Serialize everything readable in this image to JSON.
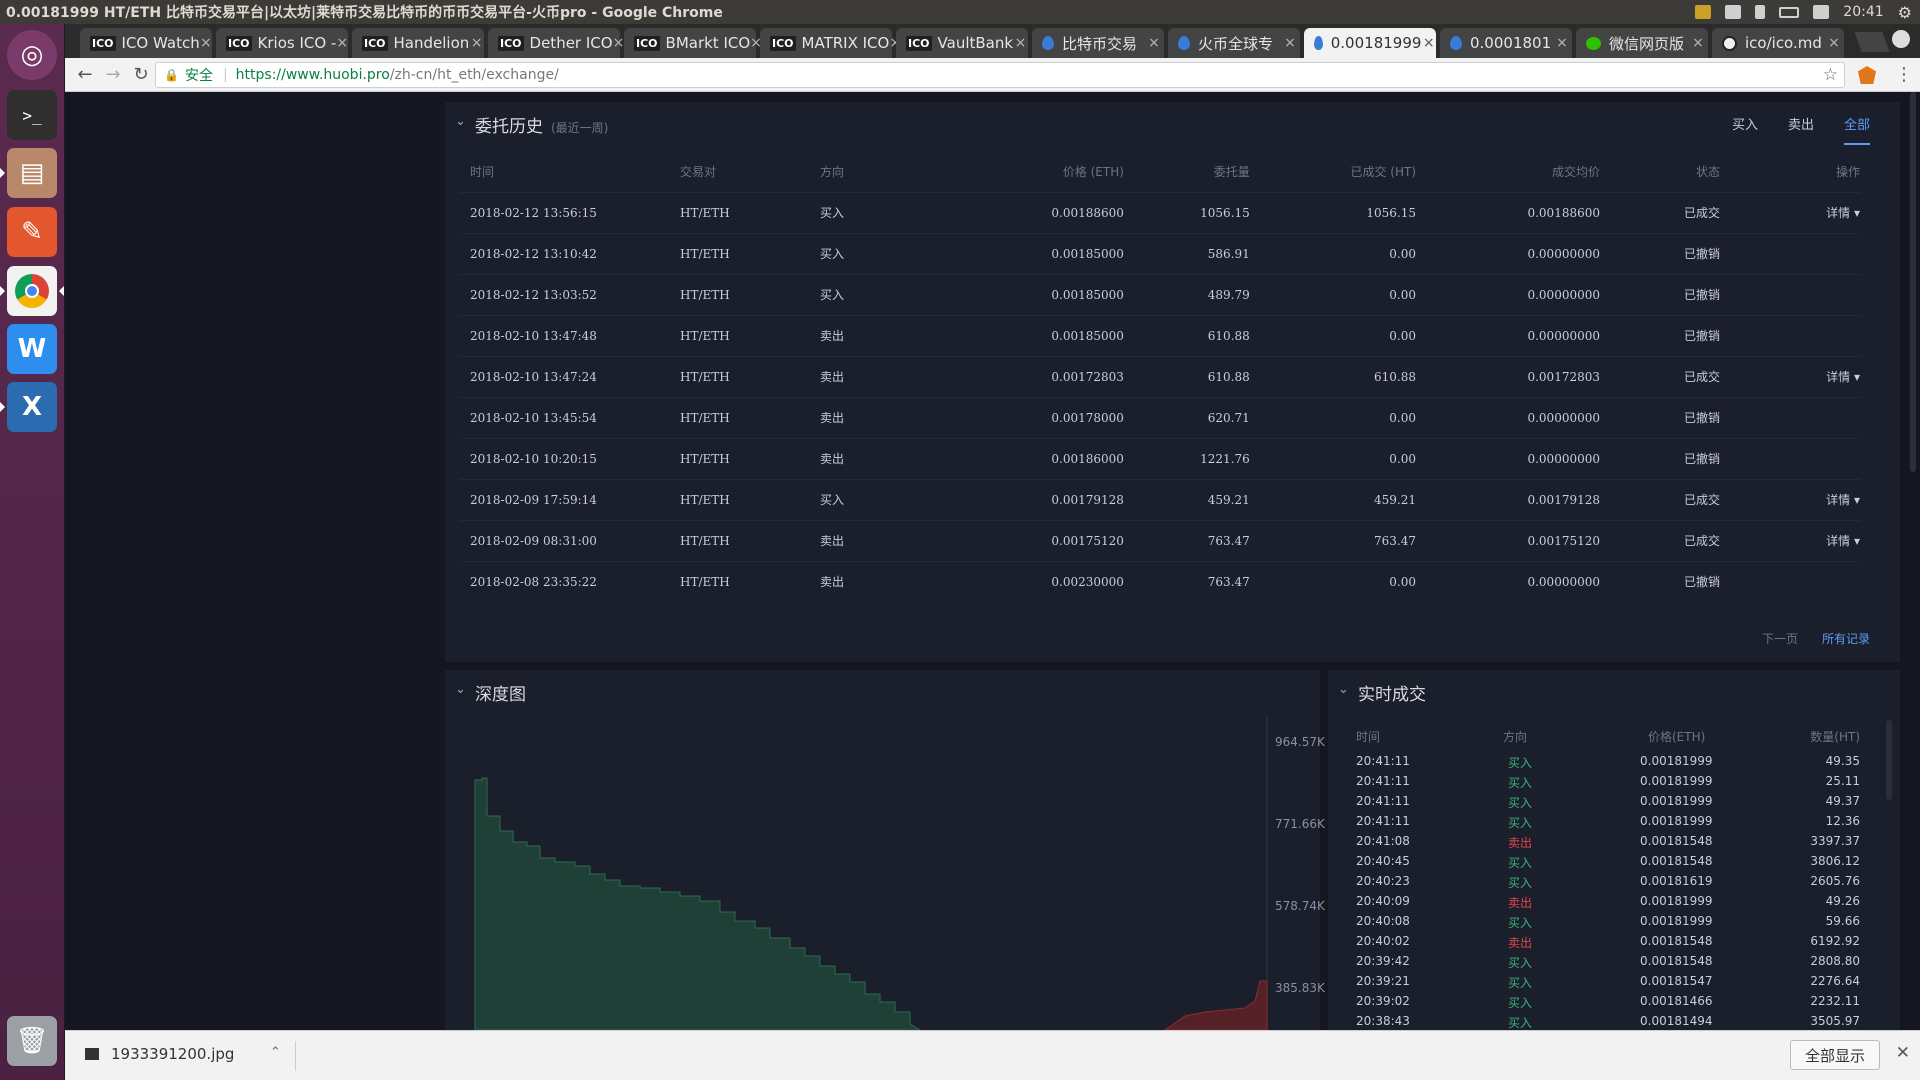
{
  "window": {
    "title": "0.00181999 HT/ETH 比特币交易平台|以太坊|莱特币交易比特币的币币交易平台-火币pro - Google Chrome",
    "clock": "20:41"
  },
  "tabs": [
    {
      "label": "ICO Watch",
      "kind": "ico"
    },
    {
      "label": "Krios ICO -",
      "kind": "ico"
    },
    {
      "label": "Handelion",
      "kind": "ico"
    },
    {
      "label": "Dether ICO",
      "kind": "ico"
    },
    {
      "label": "BMarkt ICO",
      "kind": "ico"
    },
    {
      "label": "MATRIX ICO",
      "kind": "ico"
    },
    {
      "label": "VaultBank",
      "kind": "ico"
    },
    {
      "label": "比特币交易",
      "kind": "drop"
    },
    {
      "label": "火币全球专",
      "kind": "drop"
    },
    {
      "label": "0.00181999",
      "kind": "drop",
      "active": true
    },
    {
      "label": "0.0001801",
      "kind": "drop"
    },
    {
      "label": "微信网页版",
      "kind": "wechat"
    },
    {
      "label": "ico/ico.md",
      "kind": "github"
    }
  ],
  "tab_icon_text": "ICO",
  "address": {
    "secure_label": "安全",
    "host": "https://www.huobi.pro",
    "path": "/zh-cn/ht_eth/exchange/"
  },
  "orders": {
    "title": "委托历史",
    "subtitle": "(最近一周)",
    "filters": [
      "买入",
      "卖出",
      "全部"
    ],
    "active_filter": "全部",
    "columns": [
      "时间",
      "交易对",
      "方向",
      "价格 (ETH)",
      "委托量",
      "已成交 (HT)",
      "成交均价",
      "状态",
      "操作"
    ],
    "rows": [
      {
        "time": "2018-02-12 13:56:15",
        "pair": "HT/ETH",
        "side": "买入",
        "side_type": "buy",
        "price": "0.00188600",
        "amount": "1056.15",
        "filled": "1056.15",
        "avg": "0.00188600",
        "status": "已成交",
        "action": "详情 ▾"
      },
      {
        "time": "2018-02-12 13:10:42",
        "pair": "HT/ETH",
        "side": "买入",
        "side_type": "buy",
        "price": "0.00185000",
        "amount": "586.91",
        "filled": "0.00",
        "avg": "0.00000000",
        "status": "已撤销",
        "action": ""
      },
      {
        "time": "2018-02-12 13:03:52",
        "pair": "HT/ETH",
        "side": "买入",
        "side_type": "buy",
        "price": "0.00185000",
        "amount": "489.79",
        "filled": "0.00",
        "avg": "0.00000000",
        "status": "已撤销",
        "action": ""
      },
      {
        "time": "2018-02-10 13:47:48",
        "pair": "HT/ETH",
        "side": "卖出",
        "side_type": "sell",
        "price": "0.00185000",
        "amount": "610.88",
        "filled": "0.00",
        "avg": "0.00000000",
        "status": "已撤销",
        "action": ""
      },
      {
        "time": "2018-02-10 13:47:24",
        "pair": "HT/ETH",
        "side": "卖出",
        "side_type": "sell",
        "price": "0.00172803",
        "amount": "610.88",
        "filled": "610.88",
        "avg": "0.00172803",
        "status": "已成交",
        "action": "详情 ▾"
      },
      {
        "time": "2018-02-10 13:45:54",
        "pair": "HT/ETH",
        "side": "卖出",
        "side_type": "sell",
        "price": "0.00178000",
        "amount": "620.71",
        "filled": "0.00",
        "avg": "0.00000000",
        "status": "已撤销",
        "action": ""
      },
      {
        "time": "2018-02-10 10:20:15",
        "pair": "HT/ETH",
        "side": "卖出",
        "side_type": "sell",
        "price": "0.00186000",
        "amount": "1221.76",
        "filled": "0.00",
        "avg": "0.00000000",
        "status": "已撤销",
        "action": ""
      },
      {
        "time": "2018-02-09 17:59:14",
        "pair": "HT/ETH",
        "side": "买入",
        "side_type": "buy",
        "price": "0.00179128",
        "amount": "459.21",
        "filled": "459.21",
        "avg": "0.00179128",
        "status": "已成交",
        "action": "详情 ▾"
      },
      {
        "time": "2018-02-09 08:31:00",
        "pair": "HT/ETH",
        "side": "卖出",
        "side_type": "sell",
        "price": "0.00175120",
        "amount": "763.47",
        "filled": "763.47",
        "avg": "0.00175120",
        "status": "已成交",
        "action": "详情 ▾"
      },
      {
        "time": "2018-02-08 23:35:22",
        "pair": "HT/ETH",
        "side": "卖出",
        "side_type": "sell",
        "price": "0.00230000",
        "amount": "763.47",
        "filled": "0.00",
        "avg": "0.00000000",
        "status": "已撤销",
        "action": ""
      }
    ],
    "pager_next": "下一页",
    "pager_all": "所有记录"
  },
  "depth": {
    "title": "深度图",
    "y_ticks": [
      "964.57K",
      "771.66K",
      "578.74K",
      "385.83K"
    ]
  },
  "trades": {
    "title": "实时成交",
    "columns": [
      "时间",
      "方向",
      "价格(ETH)",
      "数量(HT)"
    ],
    "rows": [
      {
        "time": "20:41:11",
        "side": "买入",
        "side_type": "buy",
        "price": "0.00181999",
        "qty": "49.35"
      },
      {
        "time": "20:41:11",
        "side": "买入",
        "side_type": "buy",
        "price": "0.00181999",
        "qty": "25.11"
      },
      {
        "time": "20:41:11",
        "side": "买入",
        "side_type": "buy",
        "price": "0.00181999",
        "qty": "49.37"
      },
      {
        "time": "20:41:11",
        "side": "买入",
        "side_type": "buy",
        "price": "0.00181999",
        "qty": "12.36"
      },
      {
        "time": "20:41:08",
        "side": "卖出",
        "side_type": "sell",
        "price": "0.00181548",
        "qty": "3397.37"
      },
      {
        "time": "20:40:45",
        "side": "买入",
        "side_type": "buy",
        "price": "0.00181548",
        "qty": "3806.12"
      },
      {
        "time": "20:40:23",
        "side": "买入",
        "side_type": "buy",
        "price": "0.00181619",
        "qty": "2605.76"
      },
      {
        "time": "20:40:09",
        "side": "卖出",
        "side_type": "sell",
        "price": "0.00181999",
        "qty": "49.26"
      },
      {
        "time": "20:40:08",
        "side": "买入",
        "side_type": "buy",
        "price": "0.00181999",
        "qty": "59.66"
      },
      {
        "time": "20:40:02",
        "side": "卖出",
        "side_type": "sell",
        "price": "0.00181548",
        "qty": "6192.92"
      },
      {
        "time": "20:39:42",
        "side": "买入",
        "side_type": "buy",
        "price": "0.00181548",
        "qty": "2808.80"
      },
      {
        "time": "20:39:21",
        "side": "买入",
        "side_type": "buy",
        "price": "0.00181547",
        "qty": "2276.64"
      },
      {
        "time": "20:39:02",
        "side": "买入",
        "side_type": "buy",
        "price": "0.00181466",
        "qty": "2232.11"
      },
      {
        "time": "20:38:43",
        "side": "买入",
        "side_type": "buy",
        "price": "0.00181494",
        "qty": "3505.97"
      }
    ]
  },
  "download": {
    "filename": "1933391200.jpg",
    "show_all": "全部显示"
  },
  "colors": {
    "buy": "#3cb27a",
    "sell": "#e0484e",
    "accent": "#5b9cf5"
  }
}
